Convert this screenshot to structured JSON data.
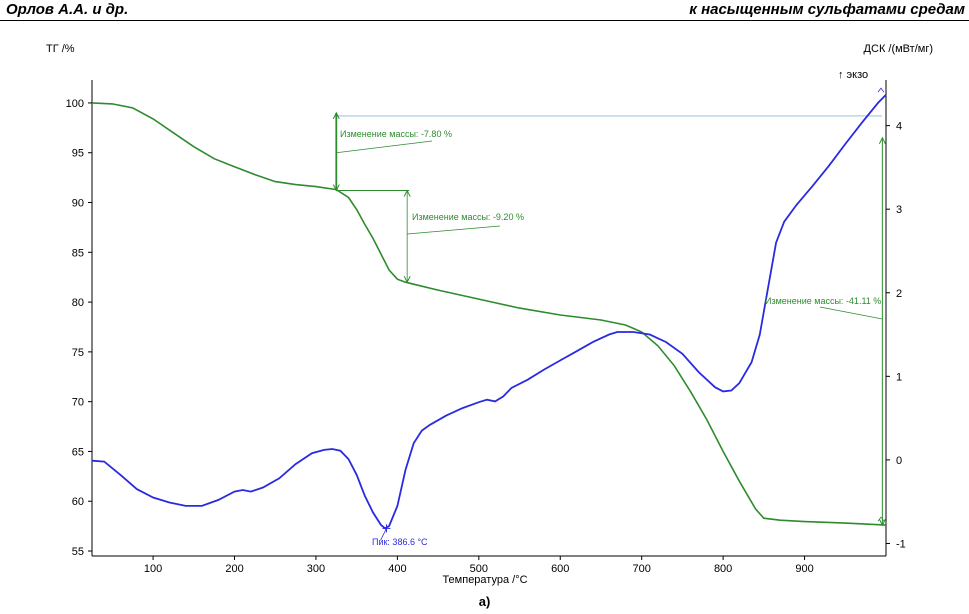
{
  "header": {
    "left": "Орлов А.А. и др.",
    "right": "к насыщенным сульфатами средам"
  },
  "caption": "а)",
  "colors": {
    "tg": "#2e8b2e",
    "dsc": "#2a2ae0",
    "axis": "#000000",
    "reference": "#b8d8e8"
  },
  "chart_data": {
    "type": "line",
    "title": "",
    "xlabel": "Температура /°C",
    "ylabel_left": "ТГ /%",
    "ylabel_right": "ДСК /(мВт/мг)",
    "exo_label": "↑ экзо",
    "xlim": [
      25,
      1000
    ],
    "ylim_left": [
      54.5,
      101.5
    ],
    "ylim_right": [
      -1.15,
      4.45
    ],
    "x_ticks": [
      100,
      200,
      300,
      400,
      500,
      600,
      700,
      800,
      900
    ],
    "y_left_ticks": [
      55,
      60,
      65,
      70,
      75,
      80,
      85,
      90,
      95,
      100
    ],
    "y_right_ticks": [
      -1,
      0,
      1,
      2,
      3,
      4
    ],
    "grid": false,
    "series": [
      {
        "name": "ТГ",
        "axis": "left",
        "points": [
          [
            25,
            100
          ],
          [
            50,
            99.9
          ],
          [
            75,
            99.5
          ],
          [
            100,
            98.4
          ],
          [
            125,
            97
          ],
          [
            150,
            95.6
          ],
          [
            175,
            94.4
          ],
          [
            200,
            93.6
          ],
          [
            225,
            92.8
          ],
          [
            250,
            92.1
          ],
          [
            275,
            91.8
          ],
          [
            300,
            91.6
          ],
          [
            325,
            91.3
          ],
          [
            340,
            90.5
          ],
          [
            350,
            89.3
          ],
          [
            360,
            87.8
          ],
          [
            370,
            86.4
          ],
          [
            380,
            84.8
          ],
          [
            390,
            83.2
          ],
          [
            400,
            82.3
          ],
          [
            410,
            82
          ],
          [
            425,
            81.7
          ],
          [
            450,
            81.2
          ],
          [
            500,
            80.3
          ],
          [
            550,
            79.4
          ],
          [
            600,
            78.7
          ],
          [
            650,
            78.2
          ],
          [
            680,
            77.7
          ],
          [
            700,
            77
          ],
          [
            720,
            75.6
          ],
          [
            740,
            73.6
          ],
          [
            760,
            71
          ],
          [
            780,
            68.2
          ],
          [
            800,
            65
          ],
          [
            820,
            62
          ],
          [
            840,
            59.2
          ],
          [
            850,
            58.3
          ],
          [
            870,
            58.1
          ],
          [
            900,
            57.95
          ],
          [
            950,
            57.8
          ],
          [
            1000,
            57.6
          ]
        ]
      },
      {
        "name": "ДСК",
        "axis": "right",
        "points": [
          [
            25,
            -0.01
          ],
          [
            40,
            -0.02
          ],
          [
            60,
            -0.18
          ],
          [
            80,
            -0.35
          ],
          [
            100,
            -0.45
          ],
          [
            120,
            -0.51
          ],
          [
            140,
            -0.55
          ],
          [
            160,
            -0.55
          ],
          [
            180,
            -0.48
          ],
          [
            200,
            -0.38
          ],
          [
            210,
            -0.36
          ],
          [
            220,
            -0.38
          ],
          [
            235,
            -0.33
          ],
          [
            255,
            -0.22
          ],
          [
            275,
            -0.05
          ],
          [
            295,
            0.08
          ],
          [
            310,
            0.12
          ],
          [
            320,
            0.13
          ],
          [
            330,
            0.11
          ],
          [
            340,
            0.01
          ],
          [
            350,
            -0.18
          ],
          [
            360,
            -0.43
          ],
          [
            370,
            -0.63
          ],
          [
            380,
            -0.78
          ],
          [
            385,
            -0.82
          ],
          [
            390,
            -0.79
          ],
          [
            400,
            -0.55
          ],
          [
            410,
            -0.12
          ],
          [
            420,
            0.2
          ],
          [
            430,
            0.35
          ],
          [
            440,
            0.42
          ],
          [
            460,
            0.53
          ],
          [
            480,
            0.62
          ],
          [
            500,
            0.69
          ],
          [
            510,
            0.72
          ],
          [
            520,
            0.7
          ],
          [
            530,
            0.76
          ],
          [
            540,
            0.86
          ],
          [
            560,
            0.96
          ],
          [
            580,
            1.08
          ],
          [
            600,
            1.19
          ],
          [
            620,
            1.3
          ],
          [
            640,
            1.41
          ],
          [
            660,
            1.5
          ],
          [
            670,
            1.53
          ],
          [
            690,
            1.53
          ],
          [
            710,
            1.5
          ],
          [
            730,
            1.41
          ],
          [
            750,
            1.27
          ],
          [
            770,
            1.05
          ],
          [
            790,
            0.87
          ],
          [
            800,
            0.82
          ],
          [
            810,
            0.83
          ],
          [
            820,
            0.92
          ],
          [
            835,
            1.17
          ],
          [
            845,
            1.5
          ],
          [
            855,
            2.05
          ],
          [
            865,
            2.6
          ],
          [
            875,
            2.85
          ],
          [
            890,
            3.05
          ],
          [
            910,
            3.28
          ],
          [
            930,
            3.52
          ],
          [
            950,
            3.78
          ],
          [
            970,
            4.03
          ],
          [
            990,
            4.27
          ],
          [
            1000,
            4.37
          ]
        ]
      }
    ],
    "annotations": [
      {
        "text": "Изменение массы: -7.80 %",
        "series": "ТГ",
        "from_x": 325,
        "to_x": 325,
        "from_y": 99,
        "to_y": 91.2
      },
      {
        "text": "Изменение массы: -9.20 %",
        "series": "ТГ",
        "from_x": 412,
        "to_x": 412,
        "from_y": 91.2,
        "to_y": 82
      },
      {
        "text": "Изменение массы: -41.11 %",
        "series": "ТГ",
        "from_x": 998,
        "to_x": 998,
        "from_y": 96.5,
        "to_y": 57.6
      },
      {
        "text": "Пик: 386.6 °C",
        "series": "ДСК",
        "x": 386.6,
        "y": -0.82
      }
    ]
  }
}
